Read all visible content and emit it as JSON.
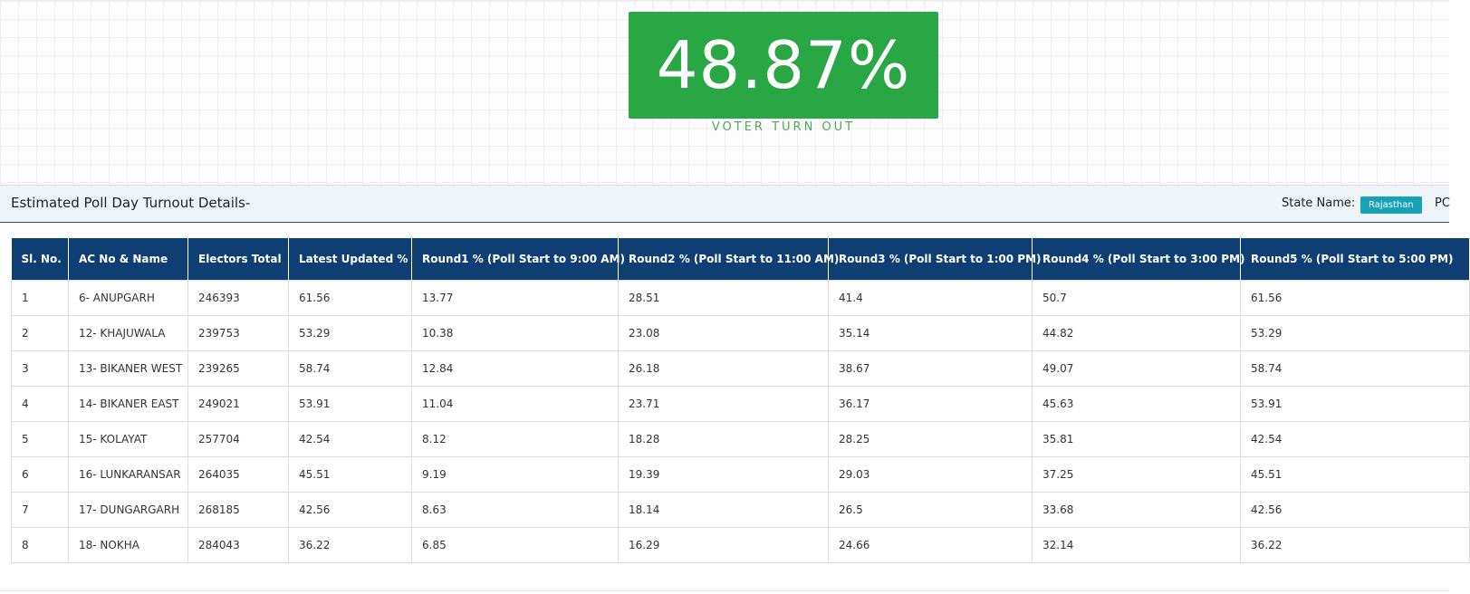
{
  "turnout": {
    "value": "48.87%",
    "label": "VOTER TURN OUT"
  },
  "details": {
    "title": "Estimated Poll Day Turnout Details-",
    "state_label": "State Name:",
    "state_value": "Rajasthan",
    "pc_label": "PC"
  },
  "colors": {
    "turnout_green": "#29a745",
    "header_navy": "#0e3e72",
    "badge_teal": "#17a2b8"
  },
  "table": {
    "headers": [
      "Sl. No.",
      "AC No & Name",
      "Electors Total",
      "Latest Updated %",
      "Round1 % (Poll Start to 9:00 AM)",
      "Round2 % (Poll Start to 11:00 AM)",
      "Round3 % (Poll Start to 1:00 PM)",
      "Round4 % (Poll Start to 3:00 PM)",
      "Round5 % (Poll Start to 5:00 PM)"
    ],
    "rows": [
      [
        "1",
        "6- ANUPGARH",
        "246393",
        "61.56",
        "13.77",
        "28.51",
        "41.4",
        "50.7",
        "61.56"
      ],
      [
        "2",
        "12- KHAJUWALA",
        "239753",
        "53.29",
        "10.38",
        "23.08",
        "35.14",
        "44.82",
        "53.29"
      ],
      [
        "3",
        "13- BIKANER WEST",
        "239265",
        "58.74",
        "12.84",
        "26.18",
        "38.67",
        "49.07",
        "58.74"
      ],
      [
        "4",
        "14- BIKANER EAST",
        "249021",
        "53.91",
        "11.04",
        "23.71",
        "36.17",
        "45.63",
        "53.91"
      ],
      [
        "5",
        "15- KOLAYAT",
        "257704",
        "42.54",
        "8.12",
        "18.28",
        "28.25",
        "35.81",
        "42.54"
      ],
      [
        "6",
        "16- LUNKARANSAR",
        "264035",
        "45.51",
        "9.19",
        "19.39",
        "29.03",
        "37.25",
        "45.51"
      ],
      [
        "7",
        "17- DUNGARGARH",
        "268185",
        "42.56",
        "8.63",
        "18.14",
        "26.5",
        "33.68",
        "42.56"
      ],
      [
        "8",
        "18- NOKHA",
        "284043",
        "36.22",
        "6.85",
        "16.29",
        "24.66",
        "32.14",
        "36.22"
      ]
    ]
  }
}
